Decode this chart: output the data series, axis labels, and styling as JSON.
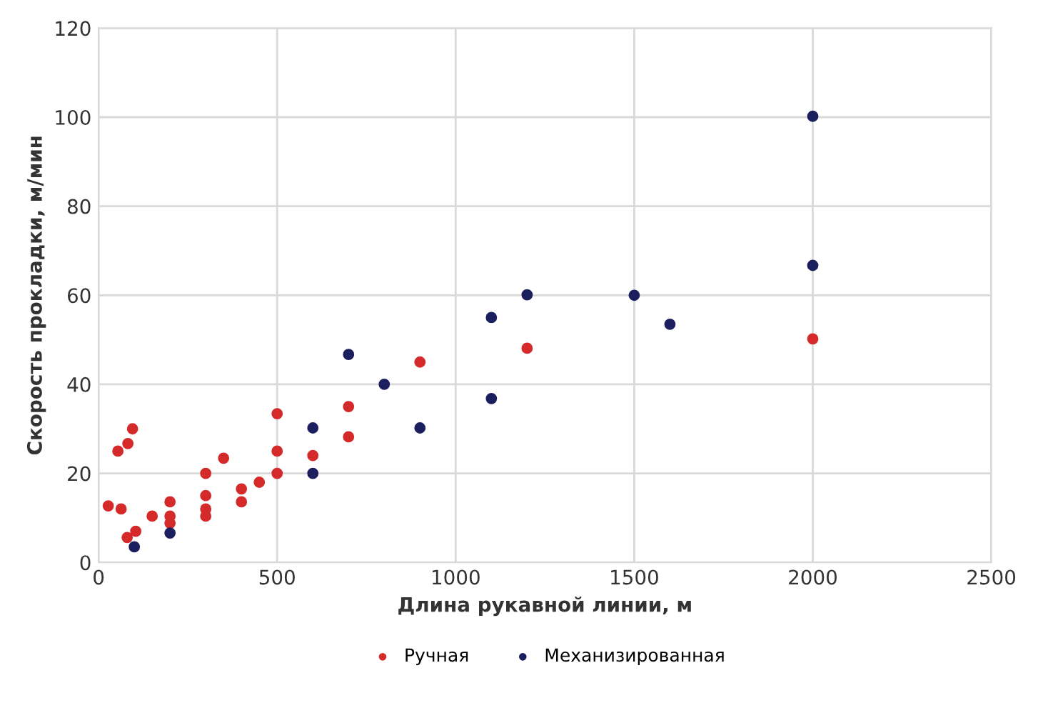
{
  "chart_data": {
    "type": "scatter",
    "xlabel": "Длина рукавной линии, м",
    "ylabel": "Скорость прокладки, м/мин",
    "xlim": [
      0,
      2500
    ],
    "xticks": [
      0,
      500,
      1000,
      1500,
      2000,
      2500
    ],
    "ylim": [
      0,
      120
    ],
    "yticks": [
      0,
      20,
      40,
      60,
      80,
      100,
      120
    ],
    "grid": true,
    "legend": "bottom",
    "marker": "circle",
    "series": [
      {
        "name": "Ручная",
        "color": "#d42a2a",
        "x": [
          27,
          63,
          54,
          82,
          95,
          80,
          104,
          150,
          200,
          200,
          200,
          300,
          300,
          300,
          300,
          350,
          400,
          400,
          450,
          500,
          500,
          500,
          600,
          700,
          700,
          900,
          1200,
          2000
        ],
        "values": [
          12.7,
          12,
          25,
          26.7,
          30,
          5.6,
          7,
          10.4,
          13.6,
          10.4,
          8.8,
          20,
          15,
          12,
          10.4,
          23.4,
          16.5,
          13.6,
          18,
          33.4,
          25,
          20,
          24,
          35,
          28.2,
          45,
          48.1,
          50.2
        ]
      },
      {
        "name": "Механизированная",
        "color": "#1c1f5e",
        "x": [
          100,
          200,
          600,
          600,
          700,
          800,
          900,
          1100,
          1100,
          1200,
          1500,
          1600,
          2000,
          2000
        ],
        "values": [
          3.5,
          6.6,
          30.2,
          20,
          46.7,
          40,
          30.2,
          55,
          36.8,
          60.1,
          60,
          53.5,
          66.7,
          100.2
        ]
      }
    ]
  }
}
